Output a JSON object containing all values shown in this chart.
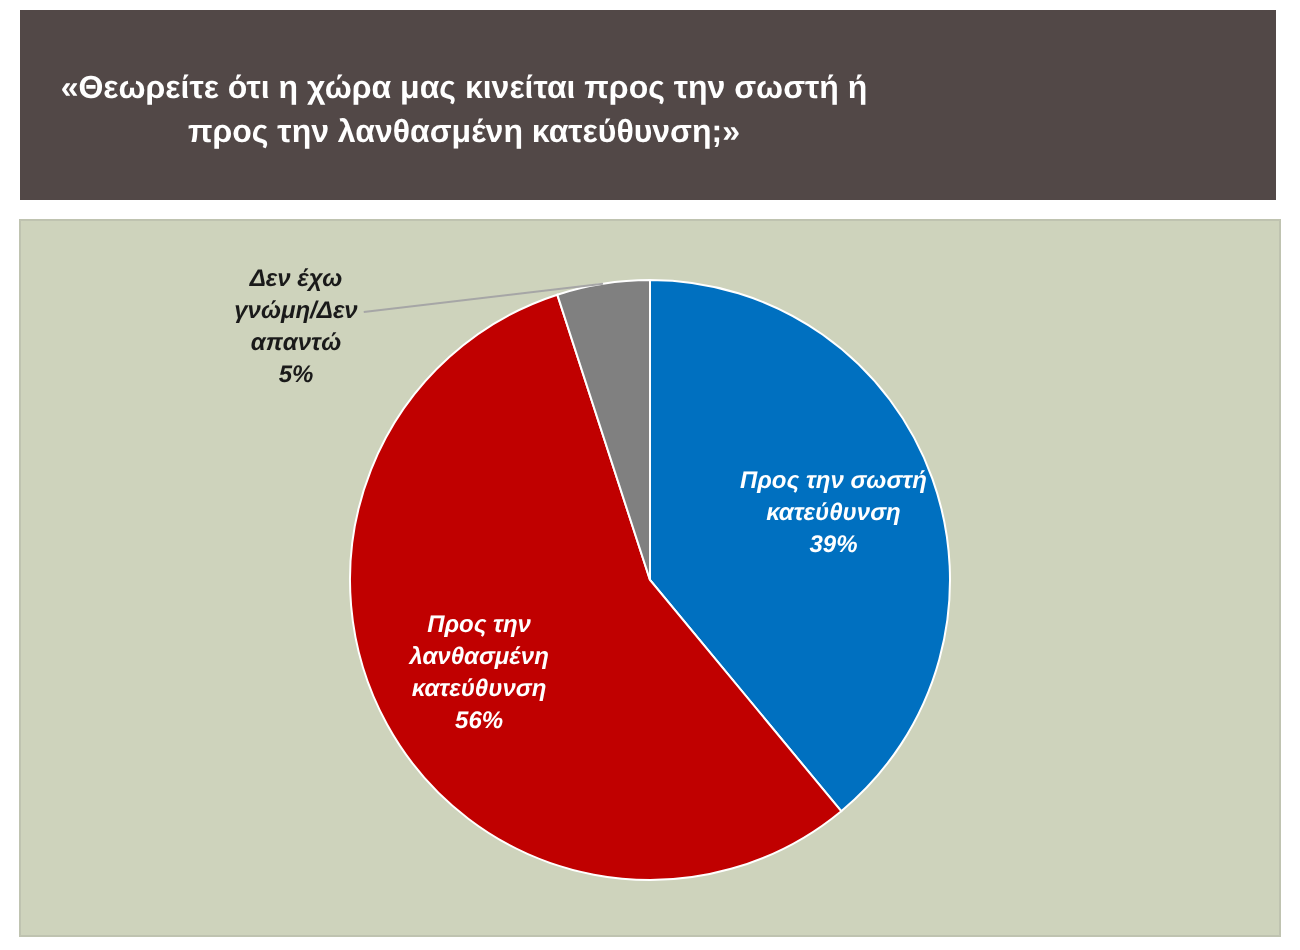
{
  "chart_data": {
    "type": "pie",
    "title": "«Θεωρείτε ότι η χώρα μας κινείται προς την σωστή ή προς την λανθασμένη κατεύθυνση;»",
    "categories": [
      "Προς την σωστή κατεύθυνση",
      "Προς την λανθασμένη κατεύθυνση",
      "Δεν έχω γνώμη/Δεν απαντώ"
    ],
    "values": [
      39,
      56,
      5
    ],
    "value_labels": [
      "39%",
      "56%",
      "5%"
    ],
    "colors": [
      "#0070c0",
      "#c00000",
      "#808080"
    ]
  }
}
